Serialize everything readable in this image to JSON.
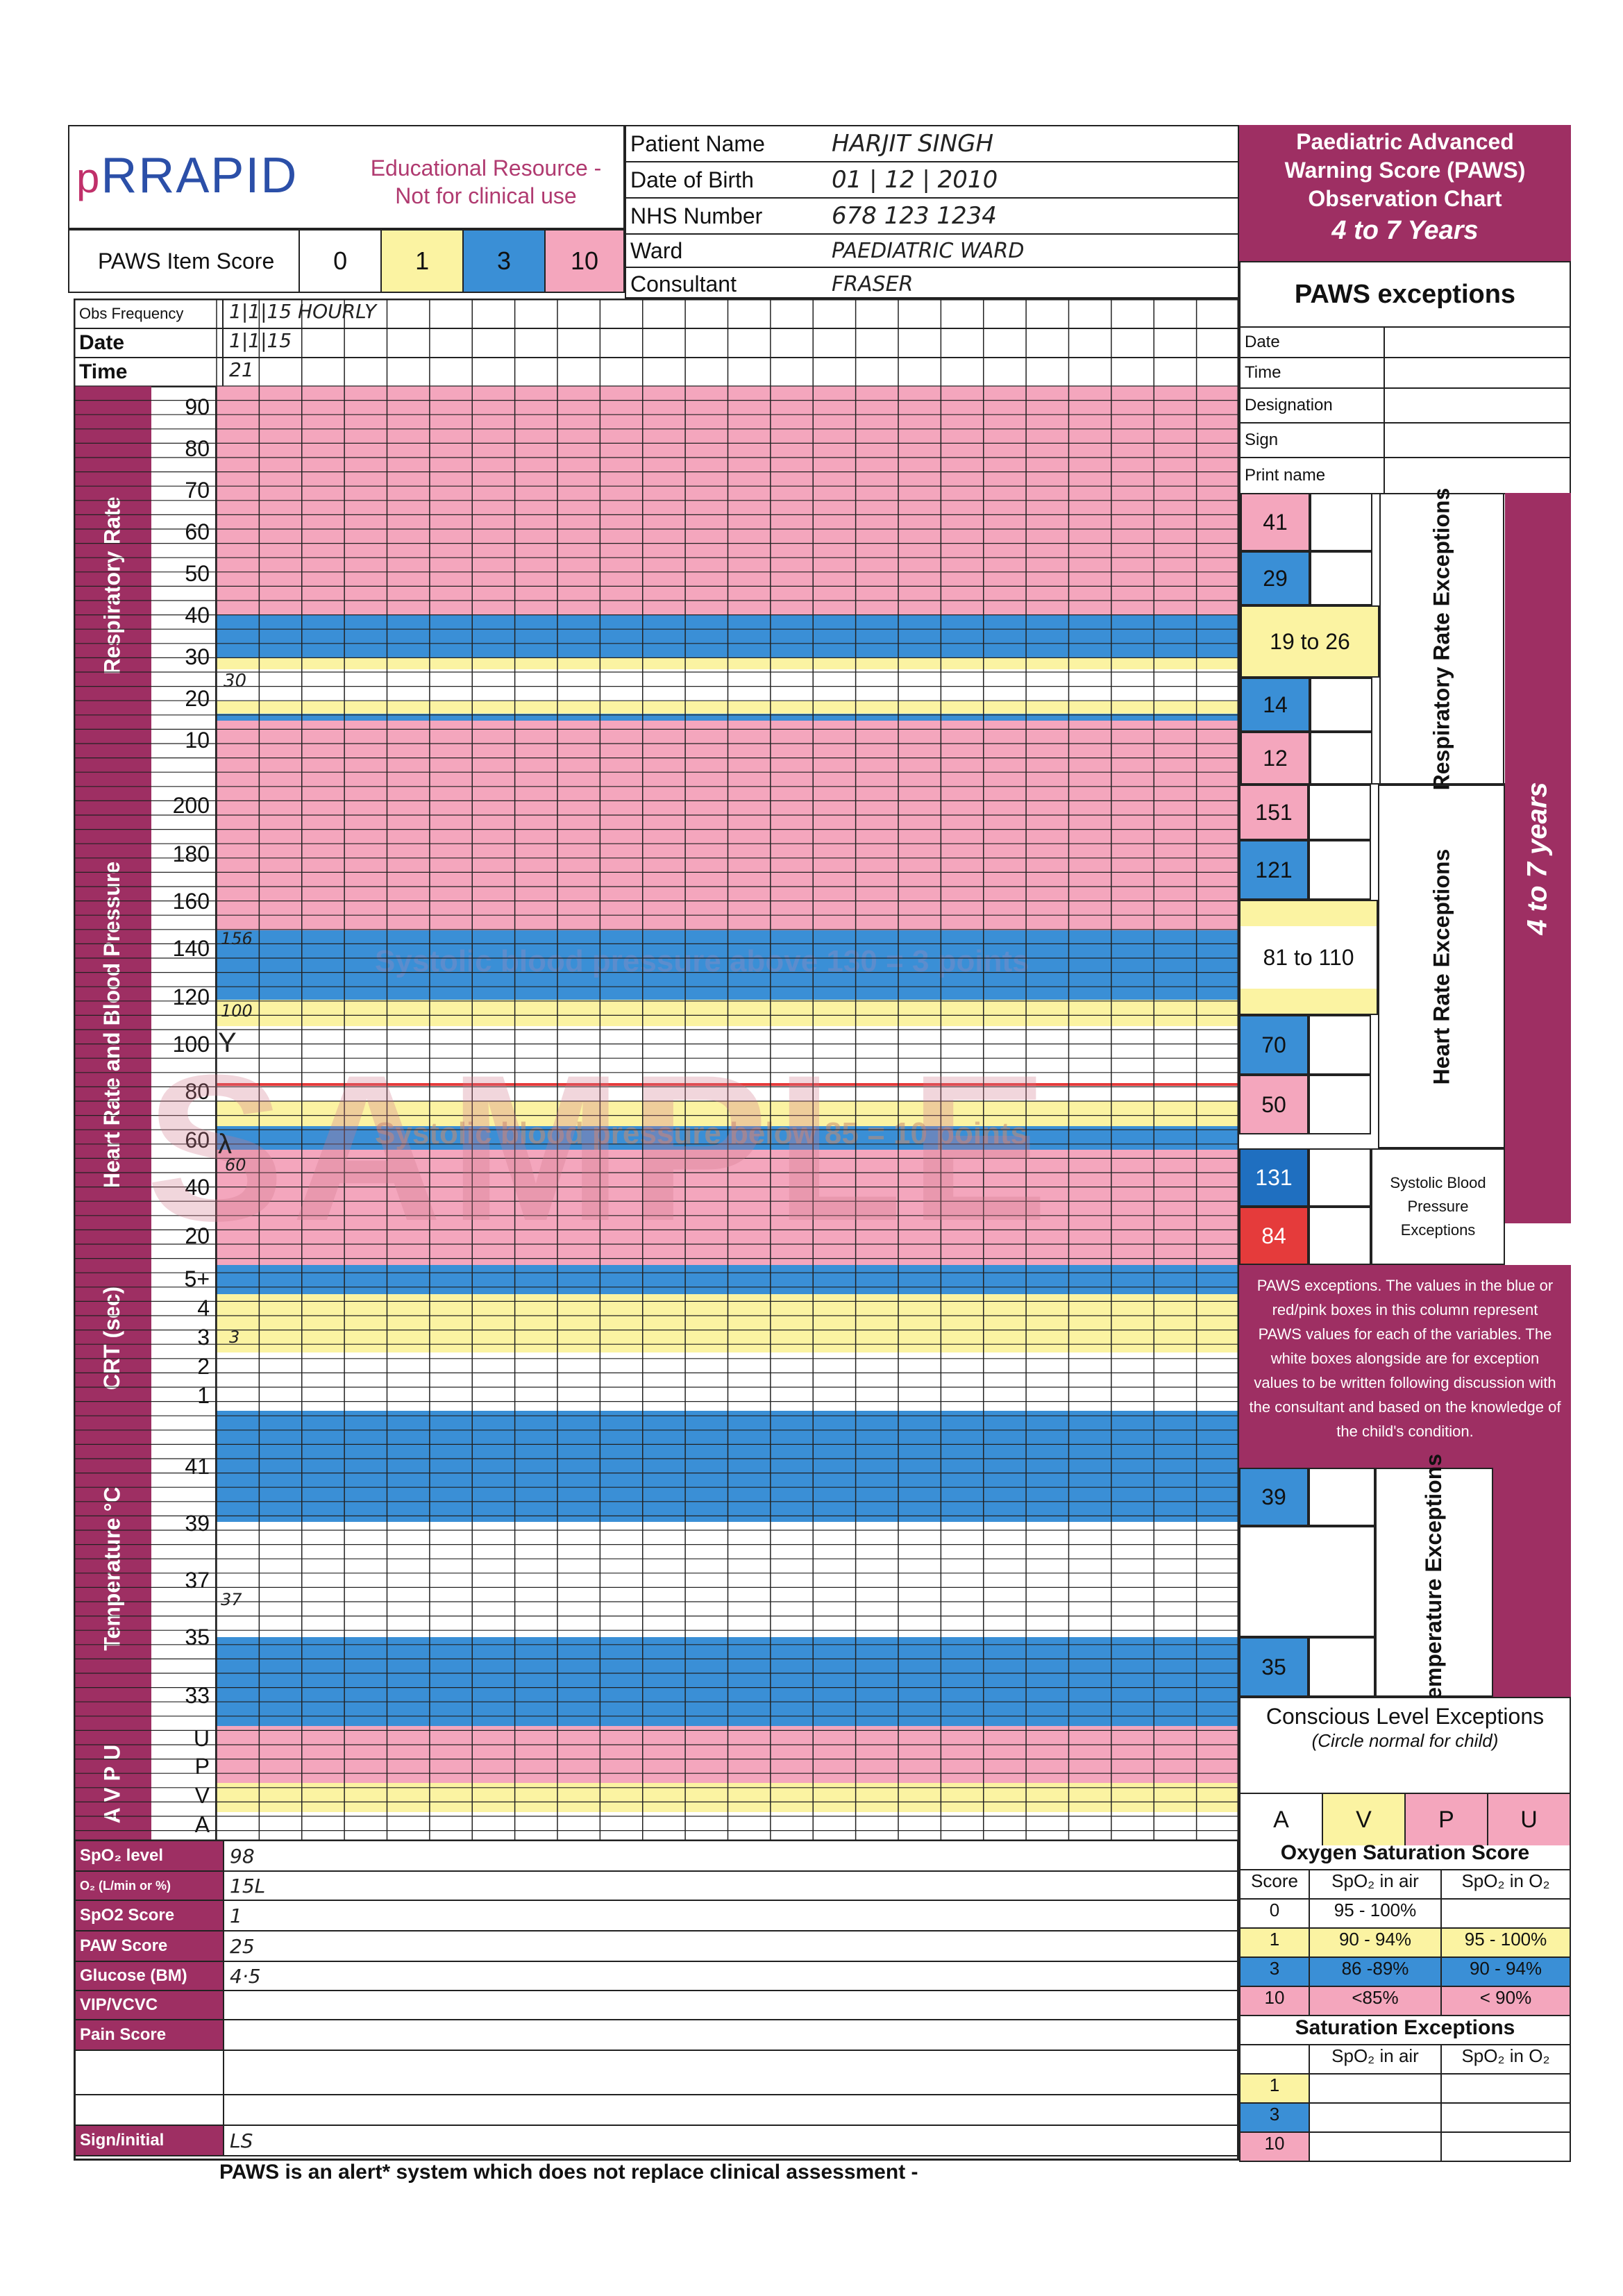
{
  "header": {
    "logo_text": "RRAPID",
    "edu_line1": "Educational Resource -",
    "edu_line2": "Not for clinical use",
    "title_line1": "Paediatric Advanced",
    "title_line2": "Warning Score (PAWS)",
    "title_line3": "Observation Chart",
    "age_band": "4 to 7 Years",
    "exceptions_title": "PAWS exceptions"
  },
  "patient": {
    "labels": [
      "Patient Name",
      "Date of Birth",
      "NHS Number",
      "Ward",
      "Consultant"
    ],
    "values": [
      "HARJIT SINGH",
      "01 | 12 | 2010",
      "678 123 1234",
      "PAEDIATRIC WARD",
      "FRASER"
    ]
  },
  "item_score": {
    "label": "PAWS Item Score",
    "scores": [
      "0",
      "1",
      "3",
      "10"
    ]
  },
  "rows": {
    "obs_frequency": "Obs Frequency",
    "obs_frequency_value": "1|1|15 HOURLY",
    "date": "Date",
    "date_value": "1|1|15",
    "time": "Time",
    "time_value": "21"
  },
  "sections": {
    "rr": "Respiratory Rate",
    "hr": "Heart Rate and Blood Pressure",
    "crt": "CRT (sec)",
    "temp": "Temperature °C",
    "avpu": "A V P U"
  },
  "rr_ticks": [
    "90",
    "80",
    "70",
    "60",
    "50",
    "40",
    "30",
    "20",
    "10"
  ],
  "hr_ticks": [
    "200",
    "180",
    "160",
    "140",
    "120",
    "100",
    "80",
    "60",
    "40",
    "20"
  ],
  "crt_ticks": [
    "5+",
    "4",
    "3",
    "2",
    "1"
  ],
  "temp_ticks": [
    "41",
    "39",
    "37",
    "35",
    "33"
  ],
  "avpu_ticks": [
    "U",
    "P",
    "V",
    "A"
  ],
  "notes": {
    "sbp_above": "Systolic blood pressure above 130 = 3 points",
    "sbp_below": "Systolic blood pressure below 85 = 10 points",
    "watermark": "SAMPLE"
  },
  "handwritten": {
    "rr": "30",
    "hr": "156",
    "bp_sys": "100",
    "bp_dia": "60",
    "crt": "3",
    "temp": "37"
  },
  "bottom_rows": {
    "labels": [
      "SpO₂ level",
      "O₂ (L/min or %)",
      "SpO2 Score",
      "PAW Score",
      "Glucose (BM)",
      "VIP/VCVC",
      "Pain Score",
      "",
      "",
      "Sign/initial"
    ],
    "values": [
      "98",
      "15L",
      "1",
      "25",
      "4·5",
      "",
      "",
      "",
      "",
      "LS"
    ]
  },
  "footer": "PAWS is an alert* system which does not replace clinical assessment -",
  "exceptions_meta": [
    "Date",
    "Time",
    "Designation",
    "Sign",
    "Print name"
  ],
  "rr_exceptions": {
    "values": [
      "41",
      "29",
      "19 to 26",
      "14",
      "12"
    ],
    "label": "Respiratory Rate Exceptions"
  },
  "hr_exceptions": {
    "values": [
      "151",
      "121",
      "81 to 110",
      "70",
      "50"
    ],
    "label": "Heart Rate Exceptions"
  },
  "bp_exceptions": {
    "values": [
      "131",
      "84"
    ],
    "label": "Systolic Blood Pressure Exceptions"
  },
  "side_label": "4 to 7 years",
  "paws_note": "PAWS exceptions. The values in the blue or red/pink boxes in this column represent PAWS values for each of the variables. The white boxes alongside are for exception values to be written following discussion with the consultant and based on the knowledge of the child's condition.",
  "temp_exceptions": {
    "values": [
      "39",
      "35"
    ],
    "label": "Temperature Exceptions"
  },
  "conscious": {
    "title": "Conscious Level Exceptions",
    "sub": "(Circle normal for child)",
    "options": [
      "A",
      "V",
      "P",
      "U"
    ]
  },
  "o2_table": {
    "title": "Oxygen Saturation Score",
    "headers": [
      "Score",
      "SpO₂ in air",
      "SpO₂ in O₂"
    ],
    "rows": [
      [
        "0",
        "95 - 100%",
        ""
      ],
      [
        "1",
        "90 - 94%",
        "95 - 100%"
      ],
      [
        "3",
        "86 -89%",
        "90 - 94%"
      ],
      [
        "10",
        "<85%",
        "< 90%"
      ]
    ]
  },
  "sat_exceptions": {
    "title": "Saturation Exceptions",
    "headers": [
      "SpO₂ in air",
      "SpO₂ in O₂"
    ],
    "scores": [
      "1",
      "3",
      "10"
    ]
  },
  "colors": {
    "magenta": "#9e2f63",
    "pink": "#f4a6bd",
    "blue": "#3a8fd6",
    "yellow": "#fbf3a2",
    "red": "#e53b3b"
  }
}
